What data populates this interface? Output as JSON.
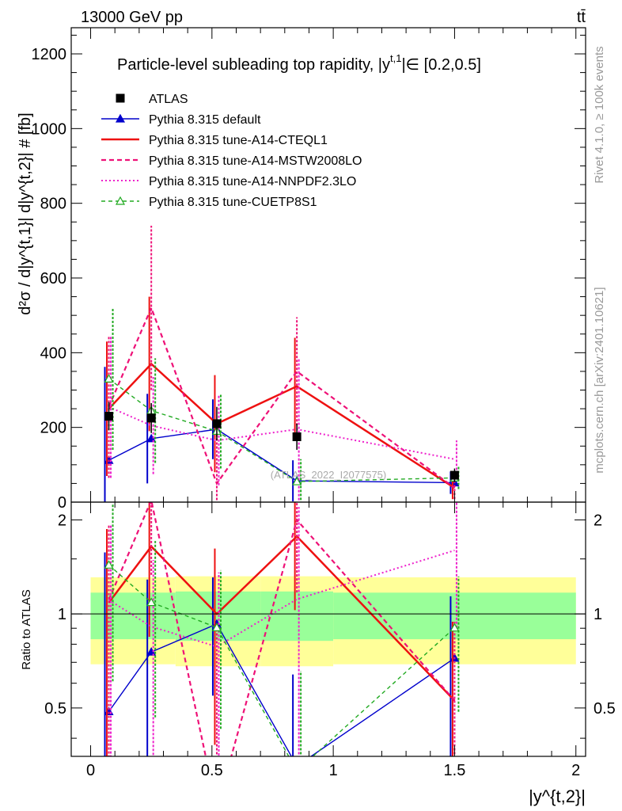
{
  "header": {
    "energy_label": "13000 GeV pp",
    "process_label": "tt̄"
  },
  "side": {
    "rivet_label": "Rivet 4.1.0, ≥ 100k events",
    "mcplots_label": "mcplots.cern.ch [arXiv:2401.10621]"
  },
  "watermark": "(ATLAS_2022_I2077575)",
  "chart_data": {
    "type": "line",
    "title": "Particle-level subleading top rapidity, |y^{t,1}| ∈ [0.2,0.5]",
    "title_text": "Particle-level subleading top rapidity, |y",
    "title_sup": "t,1",
    "title_tail": "|∈ [0.2,0.5]",
    "ylabel": "d²σ / d|y^{t,1}| d|y^{t,2}| # [fb]",
    "xlabel": "|y^{t,2}|",
    "ratio_ylabel": "Ratio to ATLAS",
    "xlim": [
      -0.08,
      2.04
    ],
    "ylim": [
      0,
      1270
    ],
    "ratio_ylim": [
      0.35,
      2.28
    ],
    "x_ticks": [
      0,
      0.5,
      1,
      1.5,
      2
    ],
    "x_tick_labels": [
      "0",
      "0.5",
      "1",
      "1.5",
      "2"
    ],
    "y_ticks": [
      0,
      200,
      400,
      600,
      800,
      1000,
      1200
    ],
    "y_tick_labels": [
      "0",
      "200",
      "400",
      "600",
      "800",
      "1000",
      "1200"
    ],
    "ratio_ticks": [
      0.5,
      1,
      2
    ],
    "ratio_tick_labels": [
      "0.5",
      "1",
      "2"
    ],
    "x": [
      0.075,
      0.25,
      0.52,
      0.85,
      1.5
    ],
    "bins": [
      [
        0,
        0.15
      ],
      [
        0.15,
        0.35
      ],
      [
        0.35,
        0.7
      ],
      [
        0.7,
        1.0
      ],
      [
        1.0,
        2.0
      ]
    ],
    "data": {
      "name": "ATLAS",
      "values": [
        230,
        225,
        210,
        175,
        72
      ],
      "errors": [
        38,
        40,
        45,
        35,
        18
      ],
      "color": "#000000"
    },
    "band": {
      "inner": [
        0.17,
        0.17,
        0.18,
        0.18,
        0.17
      ],
      "outer": [
        0.31,
        0.31,
        0.32,
        0.32,
        0.31
      ]
    },
    "series": [
      {
        "name": "Pythia 8.315 default",
        "values": [
          112,
          170,
          195,
          57,
          52
        ],
        "errors": [
          250,
          120,
          80,
          55,
          30
        ],
        "color": "#0000cc",
        "dash": "",
        "width": 1.4,
        "marker": "triangle"
      },
      {
        "name": "Pythia 8.315 tune-A14-CTEQL1",
        "values": [
          250,
          370,
          210,
          310,
          38
        ],
        "errors": [
          180,
          180,
          130,
          130,
          30
        ],
        "color": "#ee1111",
        "dash": "",
        "width": 2.5,
        "marker": "none"
      },
      {
        "name": "Pythia 8.315 tune-A14-MSTW2008LO",
        "values": [
          255,
          520,
          50,
          350,
          38
        ],
        "errors": [
          190,
          220,
          140,
          145,
          30
        ],
        "color": "#ee1177",
        "dash": "6,4",
        "width": 2.2,
        "marker": "none"
      },
      {
        "name": "Pythia 8.315 tune-A14-NNPDF2.3LO",
        "values": [
          255,
          205,
          165,
          195,
          115
        ],
        "errors": [
          190,
          130,
          120,
          190,
          50
        ],
        "color": "#ee22cc",
        "dash": "2,3",
        "width": 2.0,
        "marker": "none"
      },
      {
        "name": "Pythia 8.315 tune-CUETP8S1",
        "values": [
          330,
          245,
          190,
          55,
          65
        ],
        "errors": [
          190,
          140,
          100,
          60,
          30
        ],
        "color": "#22aa22",
        "dash": "5,4",
        "width": 1.4,
        "marker": "open-triangle"
      }
    ]
  }
}
